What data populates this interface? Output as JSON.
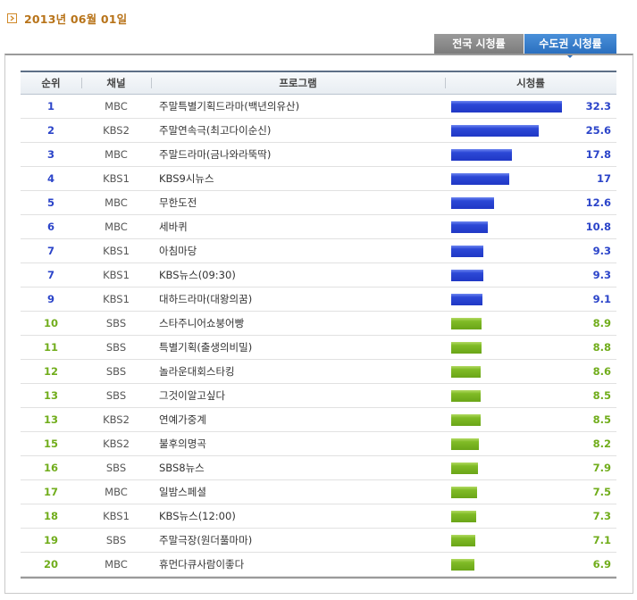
{
  "date": "2013년 06월 01일",
  "tabs": {
    "national": "전국 시청률",
    "metro": "수도권 시청률",
    "active": "metro"
  },
  "colors": {
    "top_bar": "#2b44c9",
    "rest_bar": "#76b020",
    "date_text": "#b8741a"
  },
  "headers": {
    "rank": "순위",
    "channel": "채널",
    "program": "프로그램",
    "rating": "시청률"
  },
  "rows": [
    {
      "rank": "1",
      "channel": "MBC",
      "program": "주말특별기획드라마(백년의유산)",
      "rating": "32.3",
      "value": 32.3,
      "tier": "blue"
    },
    {
      "rank": "2",
      "channel": "KBS2",
      "program": "주말연속극(최고다이순신)",
      "rating": "25.6",
      "value": 25.6,
      "tier": "blue"
    },
    {
      "rank": "3",
      "channel": "MBC",
      "program": "주말드라마(금나와라뚝딱)",
      "rating": "17.8",
      "value": 17.8,
      "tier": "blue"
    },
    {
      "rank": "4",
      "channel": "KBS1",
      "program": "KBS9시뉴스",
      "rating": "17",
      "value": 17,
      "tier": "blue"
    },
    {
      "rank": "5",
      "channel": "MBC",
      "program": "무한도전",
      "rating": "12.6",
      "value": 12.6,
      "tier": "blue"
    },
    {
      "rank": "6",
      "channel": "MBC",
      "program": "세바퀴",
      "rating": "10.8",
      "value": 10.8,
      "tier": "blue"
    },
    {
      "rank": "7",
      "channel": "KBS1",
      "program": "아침마당",
      "rating": "9.3",
      "value": 9.3,
      "tier": "blue"
    },
    {
      "rank": "7",
      "channel": "KBS1",
      "program": "KBS뉴스(09:30)",
      "rating": "9.3",
      "value": 9.3,
      "tier": "blue"
    },
    {
      "rank": "9",
      "channel": "KBS1",
      "program": "대하드라마(대왕의꿈)",
      "rating": "9.1",
      "value": 9.1,
      "tier": "blue"
    },
    {
      "rank": "10",
      "channel": "SBS",
      "program": "스타주니어쇼붕어빵",
      "rating": "8.9",
      "value": 8.9,
      "tier": "green"
    },
    {
      "rank": "11",
      "channel": "SBS",
      "program": "특별기획(출생의비밀)",
      "rating": "8.8",
      "value": 8.8,
      "tier": "green"
    },
    {
      "rank": "12",
      "channel": "SBS",
      "program": "놀라운대회스타킹",
      "rating": "8.6",
      "value": 8.6,
      "tier": "green"
    },
    {
      "rank": "13",
      "channel": "SBS",
      "program": "그것이알고싶다",
      "rating": "8.5",
      "value": 8.5,
      "tier": "green"
    },
    {
      "rank": "13",
      "channel": "KBS2",
      "program": "연예가중계",
      "rating": "8.5",
      "value": 8.5,
      "tier": "green"
    },
    {
      "rank": "15",
      "channel": "KBS2",
      "program": "불후의명곡",
      "rating": "8.2",
      "value": 8.2,
      "tier": "green"
    },
    {
      "rank": "16",
      "channel": "SBS",
      "program": "SBS8뉴스",
      "rating": "7.9",
      "value": 7.9,
      "tier": "green"
    },
    {
      "rank": "17",
      "channel": "MBC",
      "program": "일밤스페셜",
      "rating": "7.5",
      "value": 7.5,
      "tier": "green"
    },
    {
      "rank": "18",
      "channel": "KBS1",
      "program": "KBS뉴스(12:00)",
      "rating": "7.3",
      "value": 7.3,
      "tier": "green"
    },
    {
      "rank": "19",
      "channel": "SBS",
      "program": "주말극장(원더풀마마)",
      "rating": "7.1",
      "value": 7.1,
      "tier": "green"
    },
    {
      "rank": "20",
      "channel": "MBC",
      "program": "휴먼다큐사람이좋다",
      "rating": "6.9",
      "value": 6.9,
      "tier": "green"
    }
  ]
}
